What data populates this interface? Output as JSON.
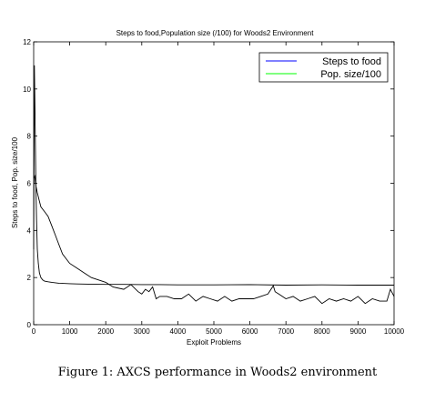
{
  "caption": "Figure 1: AXCS performance in Woods2 environment",
  "chart_data": {
    "type": "line",
    "title": "Steps to food,Population size (/100) for Woods2 Environment",
    "xlabel": "Exploit Problems",
    "ylabel": "Steps to food, Pop. size/100",
    "xlim": [
      0,
      10000
    ],
    "ylim": [
      0,
      12
    ],
    "xticks": [
      0,
      1000,
      2000,
      3000,
      4000,
      5000,
      6000,
      7000,
      8000,
      9000,
      10000
    ],
    "yticks": [
      0,
      2,
      4,
      6,
      8,
      10,
      12
    ],
    "grid": false,
    "legend_position": "top-right",
    "series": [
      {
        "name": "Steps to food",
        "color": "#0000ff",
        "x": [
          0,
          20,
          40,
          60,
          80,
          100,
          130,
          160,
          200,
          250,
          300,
          400,
          500,
          600,
          700,
          800,
          1000,
          1200,
          1500,
          2000,
          2500,
          3000,
          3500,
          4000,
          5000,
          6000,
          7000,
          8000,
          9000,
          10000
        ],
        "y": [
          3.2,
          11.0,
          8.6,
          6.0,
          4.4,
          3.2,
          2.6,
          2.2,
          2.0,
          1.9,
          1.85,
          1.82,
          1.8,
          1.78,
          1.76,
          1.75,
          1.74,
          1.73,
          1.72,
          1.71,
          1.71,
          1.7,
          1.7,
          1.69,
          1.69,
          1.7,
          1.68,
          1.69,
          1.68,
          1.68
        ]
      },
      {
        "name": "Pop. size/100",
        "color": "#00ff00",
        "x": [
          0,
          30,
          60,
          100,
          150,
          200,
          250,
          300,
          400,
          500,
          600,
          700,
          800,
          900,
          1000,
          1200,
          1400,
          1600,
          1800,
          2000,
          2200,
          2500,
          2700,
          2900,
          3000,
          3100,
          3200,
          3300,
          3400,
          3500,
          3700,
          3900,
          4100,
          4300,
          4500,
          4700,
          4900,
          5100,
          5300,
          5500,
          5700,
          5900,
          6100,
          6300,
          6500,
          6650,
          6700,
          6800,
          7000,
          7200,
          7400,
          7600,
          7800,
          8000,
          8200,
          8400,
          8600,
          8800,
          9000,
          9200,
          9400,
          9600,
          9800,
          9900,
          10000
        ],
        "y": [
          6.2,
          6.3,
          5.9,
          5.6,
          5.3,
          5.0,
          4.9,
          4.8,
          4.6,
          4.2,
          3.8,
          3.4,
          3.0,
          2.8,
          2.6,
          2.4,
          2.2,
          2.0,
          1.9,
          1.8,
          1.6,
          1.5,
          1.7,
          1.4,
          1.3,
          1.5,
          1.4,
          1.6,
          1.1,
          1.2,
          1.2,
          1.1,
          1.1,
          1.3,
          1.0,
          1.2,
          1.1,
          1.0,
          1.2,
          1.0,
          1.1,
          1.1,
          1.1,
          1.2,
          1.3,
          1.65,
          1.4,
          1.3,
          1.1,
          1.2,
          1.0,
          1.1,
          1.2,
          0.9,
          1.1,
          1.0,
          1.1,
          1.0,
          1.2,
          0.9,
          1.1,
          1.0,
          1.0,
          1.5,
          1.2
        ]
      }
    ]
  }
}
